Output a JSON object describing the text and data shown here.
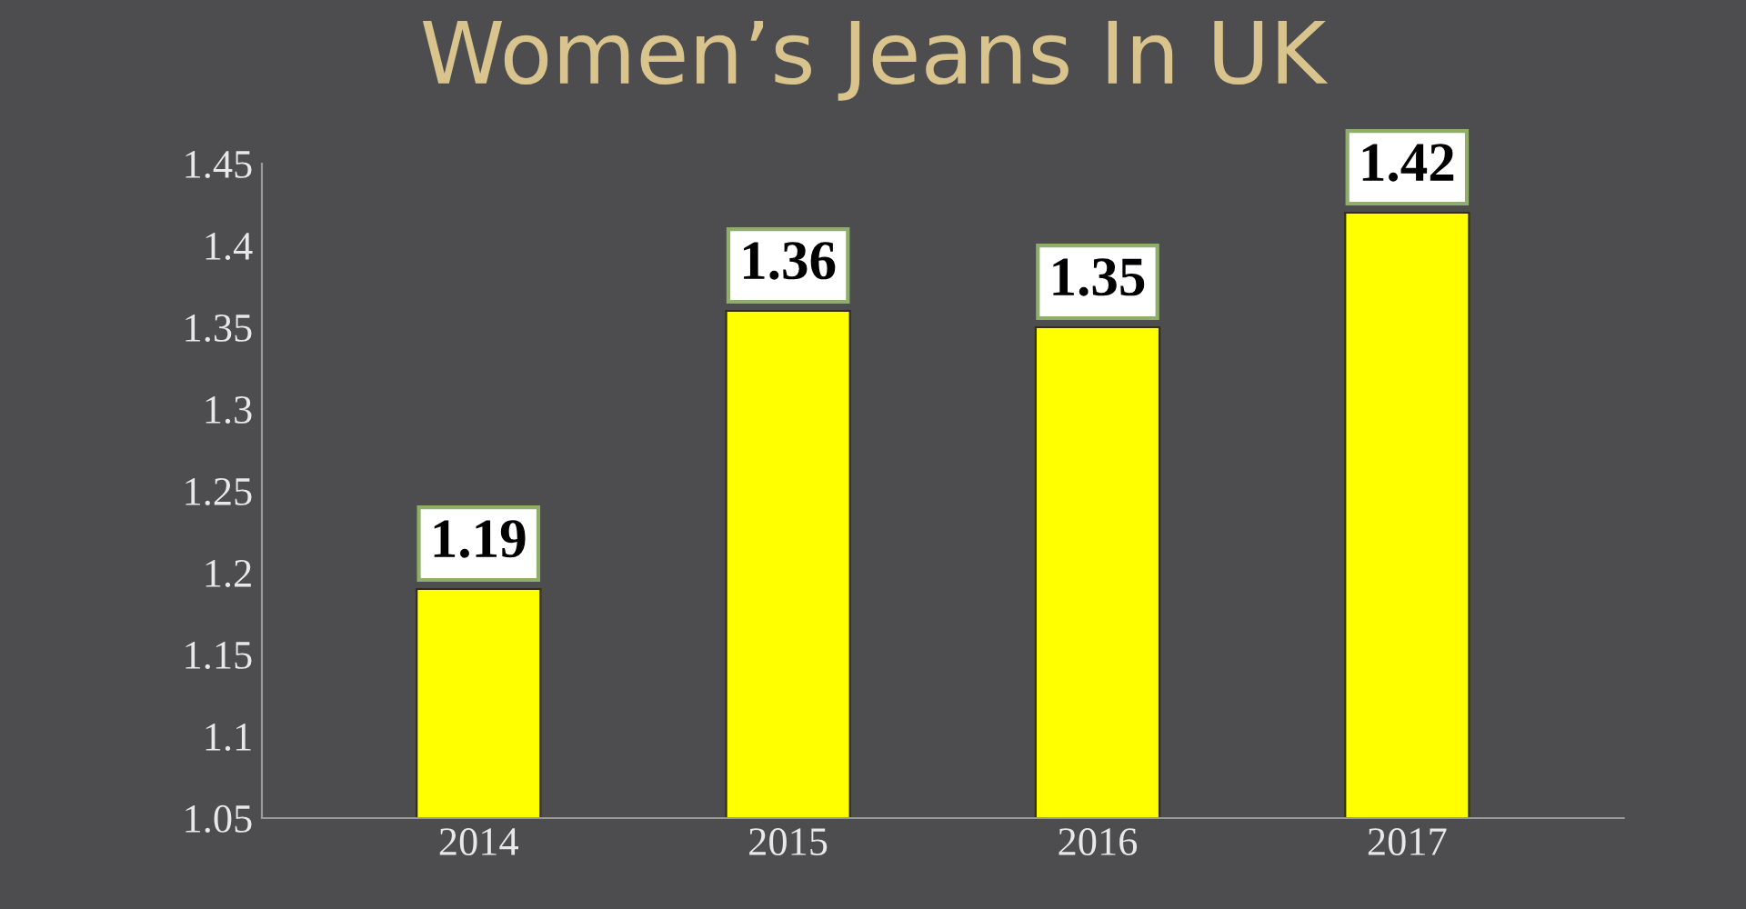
{
  "chart_data": {
    "type": "bar",
    "title": "Women’s Jeans In UK",
    "categories": [
      "2014",
      "2015",
      "2016",
      "2017"
    ],
    "values": [
      1.19,
      1.36,
      1.35,
      1.42
    ],
    "color": "#ffff00",
    "ylim": [
      1.05,
      1.45
    ],
    "yticks": [
      1.05,
      1.1,
      1.15,
      1.2,
      1.25,
      1.3,
      1.35,
      1.4,
      1.45
    ],
    "data_labels": true,
    "grid": false,
    "legend": false
  }
}
